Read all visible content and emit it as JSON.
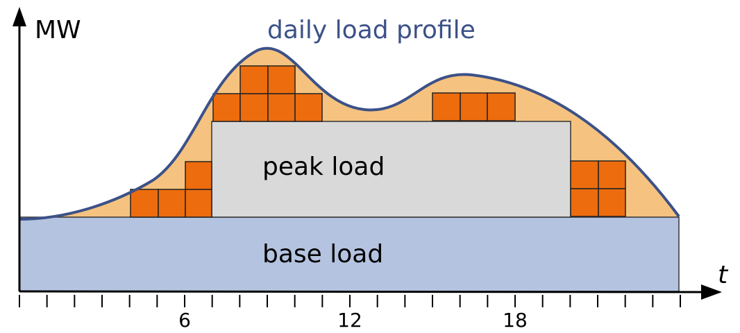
{
  "title": "daily load profile",
  "axis": {
    "y_label": "MW",
    "x_label": "t",
    "tick_labels": [
      "6",
      "12",
      "18"
    ]
  },
  "regions": {
    "peak": "peak load",
    "base": "base load"
  }
}
